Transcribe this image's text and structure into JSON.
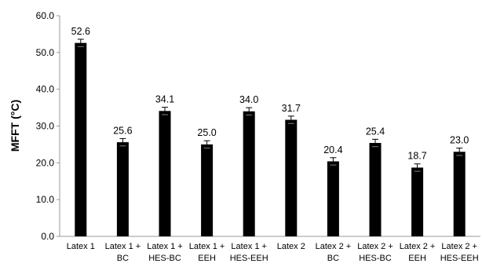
{
  "chart_data": {
    "type": "bar",
    "title": "",
    "xlabel": "",
    "ylabel": "MFFT (°C)",
    "ylim": [
      0,
      60
    ],
    "yticks": [
      "0.0",
      "10.0",
      "20.0",
      "30.0",
      "40.0",
      "50.0",
      "60.0"
    ],
    "grid": false,
    "legend": "none",
    "bar_color": "#000000",
    "categories": [
      [
        "Latex 1"
      ],
      [
        "Latex 1 +",
        "BC"
      ],
      [
        "Latex 1 +",
        "HES-BC"
      ],
      [
        "Latex 1 +",
        "EEH"
      ],
      [
        "Latex 1 +",
        "HES-EEH"
      ],
      [
        "Latex 2"
      ],
      [
        "Latex 2 +",
        "BC"
      ],
      [
        "Latex 2 +",
        "HES-BC"
      ],
      [
        "Latex 2 +",
        "EEH"
      ],
      [
        "Latex 2 +",
        "HES-EEH"
      ]
    ],
    "values": [
      52.6,
      25.6,
      34.1,
      25.0,
      34.0,
      31.7,
      20.4,
      25.4,
      18.7,
      23.0
    ],
    "value_labels": [
      "52.6",
      "25.6",
      "34.1",
      "25.0",
      "34.0",
      "31.7",
      "20.4",
      "25.4",
      "18.7",
      "23.0"
    ],
    "errors": [
      1.0,
      1.0,
      1.0,
      1.0,
      1.0,
      1.0,
      1.0,
      1.0,
      1.0,
      1.0
    ]
  }
}
